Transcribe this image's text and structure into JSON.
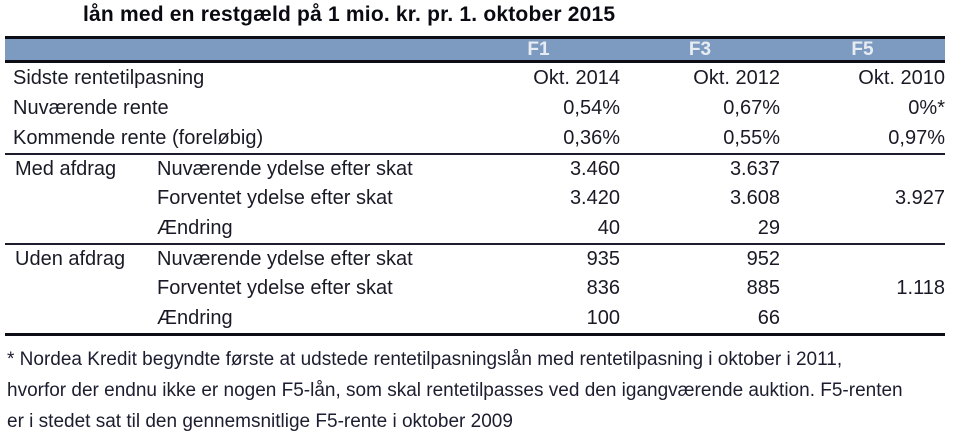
{
  "title": "lån med en restgæld på 1 mio. kr. pr. 1. oktober 2015",
  "table": {
    "columns": [
      "F1",
      "F3",
      "F5"
    ],
    "rate_rows": [
      {
        "label": "Sidste rentetilpasning",
        "f1": "Okt. 2014",
        "f3": "Okt. 2012",
        "f5": "Okt. 2010"
      },
      {
        "label": "Nuværende rente",
        "f1": "0,54%",
        "f3": "0,67%",
        "f5": "0%*"
      },
      {
        "label": "Kommende rente (foreløbig)",
        "f1": "0,36%",
        "f3": "0,55%",
        "f5": "0,97%"
      }
    ],
    "groups": [
      {
        "section": "Med afdrag",
        "rows": [
          {
            "label": "Nuværende ydelse efter skat",
            "f1": "3.460",
            "f3": "3.637",
            "f5": ""
          },
          {
            "label": "Forventet ydelse efter skat",
            "f1": "3.420",
            "f3": "3.608",
            "f5": "3.927"
          },
          {
            "label": "Ændring",
            "f1": "40",
            "f3": "29",
            "f5": ""
          }
        ]
      },
      {
        "section": "Uden afdrag",
        "rows": [
          {
            "label": "Nuværende ydelse efter skat",
            "f1": "935",
            "f3": "952",
            "f5": ""
          },
          {
            "label": "Forventet ydelse efter skat",
            "f1": "836",
            "f3": "885",
            "f5": "1.118"
          },
          {
            "label": "Ændring",
            "f1": "100",
            "f3": "66",
            "f5": ""
          }
        ]
      }
    ]
  },
  "footnote": {
    "lines": [
      "* Nordea Kredit begyndte første at udstede rentetilpasningslån med rentetilpasning i oktober i 2011,",
      "hvorfor der endnu ikke er nogen F5-lån, som skal rentetilpasses ved den igangværende auktion. F5-renten",
      "er i stedet sat til den gennemsnitlige F5-rente i oktober 2009"
    ]
  },
  "colors": {
    "header_bg": "#7D9BC1",
    "header_text": "#E7ECF3",
    "text": "#1A1A26",
    "border": "#0D0D16",
    "sep": "#1C1C2A"
  }
}
